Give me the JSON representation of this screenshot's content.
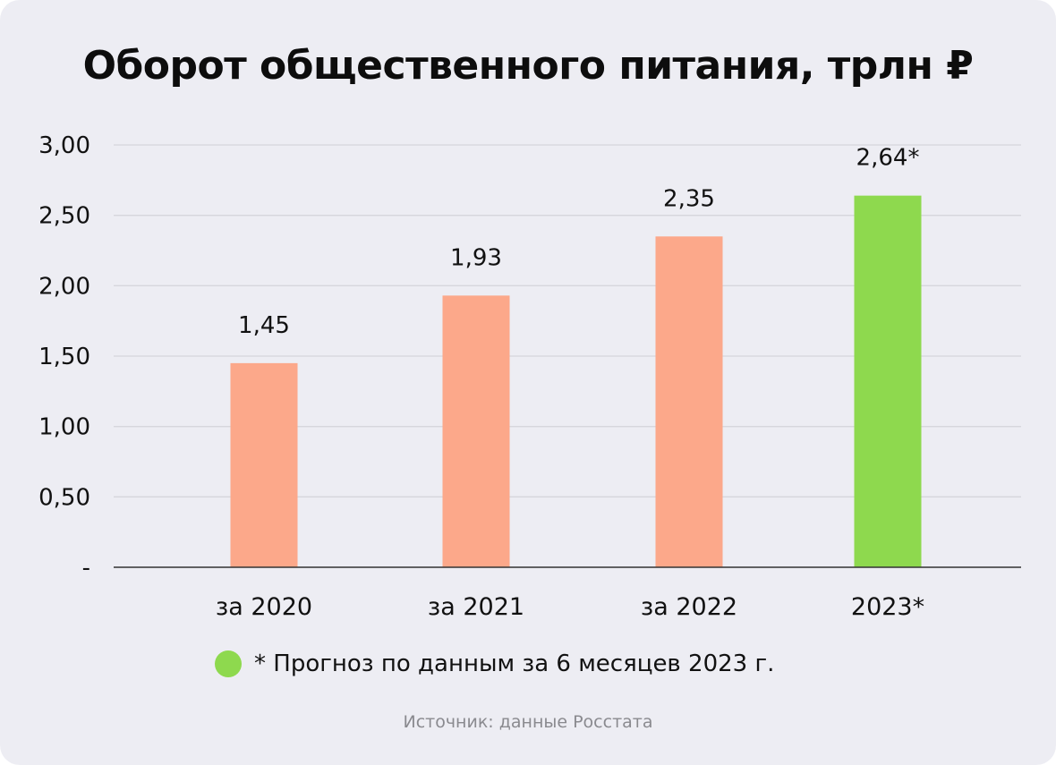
{
  "colors": {
    "background": "#ededf3",
    "bar_actual": "#fca88a",
    "bar_forecast": "#8ed94e",
    "grid": "#d6d6dc",
    "axis": "#333333"
  },
  "chart_data": {
    "type": "bar",
    "title": "Оборот общественного питания, трлн ₽",
    "xlabel": "",
    "ylabel": "",
    "ylim": [
      0,
      3
    ],
    "yticks": [
      {
        "value": 0,
        "label": "-"
      },
      {
        "value": 0.5,
        "label": "0,50"
      },
      {
        "value": 1.0,
        "label": "1,00"
      },
      {
        "value": 1.5,
        "label": "1,50"
      },
      {
        "value": 2.0,
        "label": "2,00"
      },
      {
        "value": 2.5,
        "label": "2,50"
      },
      {
        "value": 3.0,
        "label": "3,00"
      }
    ],
    "grid": true,
    "categories": [
      "за 2020",
      "за 2021",
      "за 2022",
      "2023*"
    ],
    "values": [
      1.45,
      1.93,
      2.35,
      2.64
    ],
    "value_labels": [
      "1,45",
      "1,93",
      "2,35",
      "2,64*"
    ],
    "forecast": [
      false,
      false,
      false,
      true
    ],
    "legend": {
      "placement": "bottom",
      "entries": [
        {
          "label": "* Прогноз по данным за 6 месяцев 2023 г.",
          "color": "#8ed94e"
        }
      ]
    }
  },
  "source_note": "Источник: данные Росстата"
}
